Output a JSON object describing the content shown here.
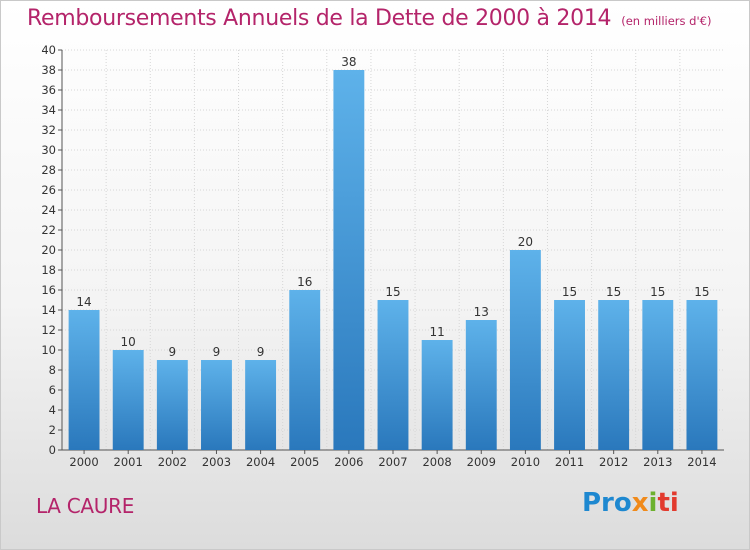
{
  "header": {
    "title": "Remboursements Annuels de la Dette de 2000 à 2014",
    "subtitle": "(en milliers d'€)"
  },
  "footer": {
    "commune": "LA CAURE",
    "logo": [
      "Pro",
      "x",
      "i",
      "ti"
    ]
  },
  "colors": {
    "bar_top": "#5eb2ea",
    "bar_bottom": "#2a78bc",
    "title": "#b4246a"
  },
  "chart_data": {
    "type": "bar",
    "categories": [
      "2000",
      "2001",
      "2002",
      "2003",
      "2004",
      "2005",
      "2006",
      "2007",
      "2008",
      "2009",
      "2010",
      "2011",
      "2012",
      "2013",
      "2014"
    ],
    "values": [
      14,
      10,
      9,
      9,
      9,
      16,
      38,
      15,
      11,
      13,
      20,
      15,
      15,
      15,
      15
    ],
    "ylim": [
      0,
      40
    ],
    "ytick_step": 2,
    "grid": true,
    "data_labels": true
  }
}
